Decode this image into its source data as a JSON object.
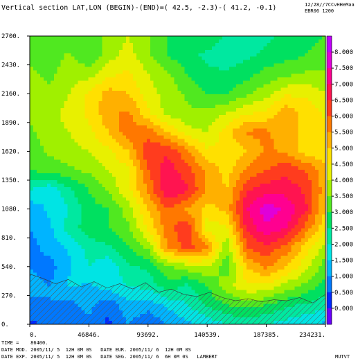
{
  "chart_data": {
    "type": "heatmap",
    "title": "Vertical section LAT,LON (BEGIN)-(END)=( 42.5, -2.3)-( 41.2, -0.1)",
    "corner": {
      "line1": "12/28//7C",
      "line2": "CvHHeMaa",
      "line3": "EBR06 1200"
    },
    "yticks": [
      "2700.",
      "2430.",
      "2160.",
      "1890.",
      "1620.",
      "1350.",
      "1080.",
      "810.",
      "540.",
      "270.",
      "0."
    ],
    "xticks": [
      "0.",
      "46846.",
      "93692.",
      "140539.",
      "187385.",
      "234231."
    ],
    "ylim": [
      0,
      2700
    ],
    "xlim": [
      0,
      234231
    ],
    "colorbar": {
      "levels": [
        "8.000",
        "7.500",
        "7.000",
        "6.500",
        "6.000",
        "5.500",
        "5.000",
        "4.500",
        "4.000",
        "3.500",
        "3.000",
        "2.500",
        "2.000",
        "1.500",
        "1.000",
        "0.500",
        "0.000"
      ],
      "colors": [
        "#6a00ff",
        "#0028ff",
        "#0078ff",
        "#00b4ff",
        "#00e4e4",
        "#00e8a0",
        "#00e060",
        "#50e820",
        "#a0f000",
        "#e8f000",
        "#ffe000",
        "#ffb000",
        "#ff7800",
        "#ff3c1e",
        "#ff1450",
        "#ff0090",
        "#e000d8",
        "#c000ff"
      ]
    },
    "field": {
      "note": "values in colorbar units sampled on a regular grid (rows top to bottom, cols left to right)",
      "rows": [
        [
          3.2,
          3.0,
          3.0,
          3.2,
          3.6,
          4.0,
          3.6,
          3.0,
          3.0,
          2.8,
          2.4,
          2.2,
          2.4,
          2.6,
          2.8,
          3.0
        ],
        [
          3.4,
          3.2,
          3.6,
          3.0,
          3.8,
          4.2,
          3.6,
          3.0,
          2.6,
          2.4,
          2.2,
          2.4,
          2.6,
          2.8,
          3.0,
          3.2
        ],
        [
          3.6,
          3.4,
          3.8,
          3.8,
          4.4,
          4.6,
          4.0,
          3.6,
          3.0,
          2.6,
          2.6,
          2.8,
          3.2,
          3.4,
          3.6,
          3.6
        ],
        [
          3.8,
          3.6,
          4.0,
          4.6,
          5.2,
          5.0,
          4.2,
          3.8,
          3.4,
          3.0,
          3.0,
          3.4,
          3.8,
          4.4,
          4.4,
          4.0
        ],
        [
          3.6,
          3.8,
          4.2,
          4.6,
          5.4,
          5.6,
          4.6,
          3.8,
          3.6,
          3.6,
          4.0,
          4.4,
          4.6,
          5.4,
          4.8,
          4.4
        ],
        [
          3.4,
          3.8,
          4.0,
          4.4,
          5.0,
          5.8,
          5.8,
          5.0,
          4.2,
          4.0,
          4.8,
          5.6,
          5.6,
          5.2,
          4.8,
          4.6
        ],
        [
          3.2,
          3.6,
          3.8,
          4.0,
          4.4,
          5.0,
          6.4,
          6.4,
          5.6,
          4.6,
          4.6,
          5.0,
          5.6,
          5.4,
          4.8,
          4.6
        ],
        [
          3.0,
          3.2,
          3.4,
          3.6,
          4.0,
          4.4,
          6.0,
          6.8,
          6.2,
          5.4,
          4.8,
          5.6,
          6.0,
          6.4,
          6.0,
          5.2
        ],
        [
          2.0,
          1.6,
          2.4,
          3.0,
          3.6,
          4.4,
          5.6,
          7.0,
          6.6,
          5.4,
          5.0,
          6.4,
          6.8,
          6.8,
          6.4,
          5.2
        ],
        [
          1.2,
          1.6,
          2.0,
          2.8,
          3.0,
          3.8,
          5.0,
          6.0,
          5.4,
          4.8,
          5.2,
          7.0,
          7.8,
          7.4,
          6.6,
          5.0
        ],
        [
          1.0,
          1.4,
          2.2,
          2.8,
          3.0,
          3.4,
          4.6,
          5.8,
          6.4,
          4.2,
          4.4,
          6.6,
          7.4,
          7.0,
          5.8,
          4.6
        ],
        [
          0.8,
          1.2,
          1.6,
          2.2,
          2.4,
          3.0,
          3.6,
          5.6,
          6.2,
          5.6,
          3.6,
          6.0,
          6.4,
          5.8,
          4.8,
          3.8
        ],
        [
          1.0,
          0.8,
          1.4,
          2.0,
          1.6,
          2.4,
          2.6,
          3.4,
          3.8,
          4.0,
          3.2,
          5.0,
          5.6,
          5.0,
          4.2,
          3.2
        ],
        [
          1.2,
          1.0,
          1.6,
          1.4,
          1.8,
          2.0,
          2.2,
          2.8,
          2.4,
          3.0,
          3.8,
          4.4,
          4.4,
          3.8,
          3.4,
          2.8
        ],
        [
          0.8,
          1.0,
          0.8,
          1.2,
          0.6,
          1.4,
          1.2,
          1.6,
          2.0,
          2.6,
          3.0,
          3.2,
          3.0,
          2.6,
          2.4,
          2.2
        ],
        [
          0.4,
          0.6,
          0.6,
          0.8,
          0.4,
          1.0,
          0.6,
          1.0,
          1.4,
          1.6,
          2.0,
          2.2,
          2.0,
          1.8,
          1.6,
          1.4
        ]
      ]
    },
    "terrain_m": [
      470,
      430,
      380,
      420,
      350,
      400,
      340,
      380,
      330,
      390,
      300,
      330,
      280,
      260,
      300,
      250,
      220,
      240,
      210,
      230,
      220,
      250,
      200,
      280
    ]
  },
  "footer": {
    "line1": "TIME =    86400.",
    "line2": "DATE MOD. 2005/11/ 5  12H 0M 0S   DATE EUR. 2005/11/ 6  12H 0M 0S",
    "line3": "DATE EXP. 2005/11/ 5  12H 0M 0S   DATE SEG. 2005/11/ 6  6H 0M 0S   LAMBERT",
    "right": "MUTVT"
  }
}
